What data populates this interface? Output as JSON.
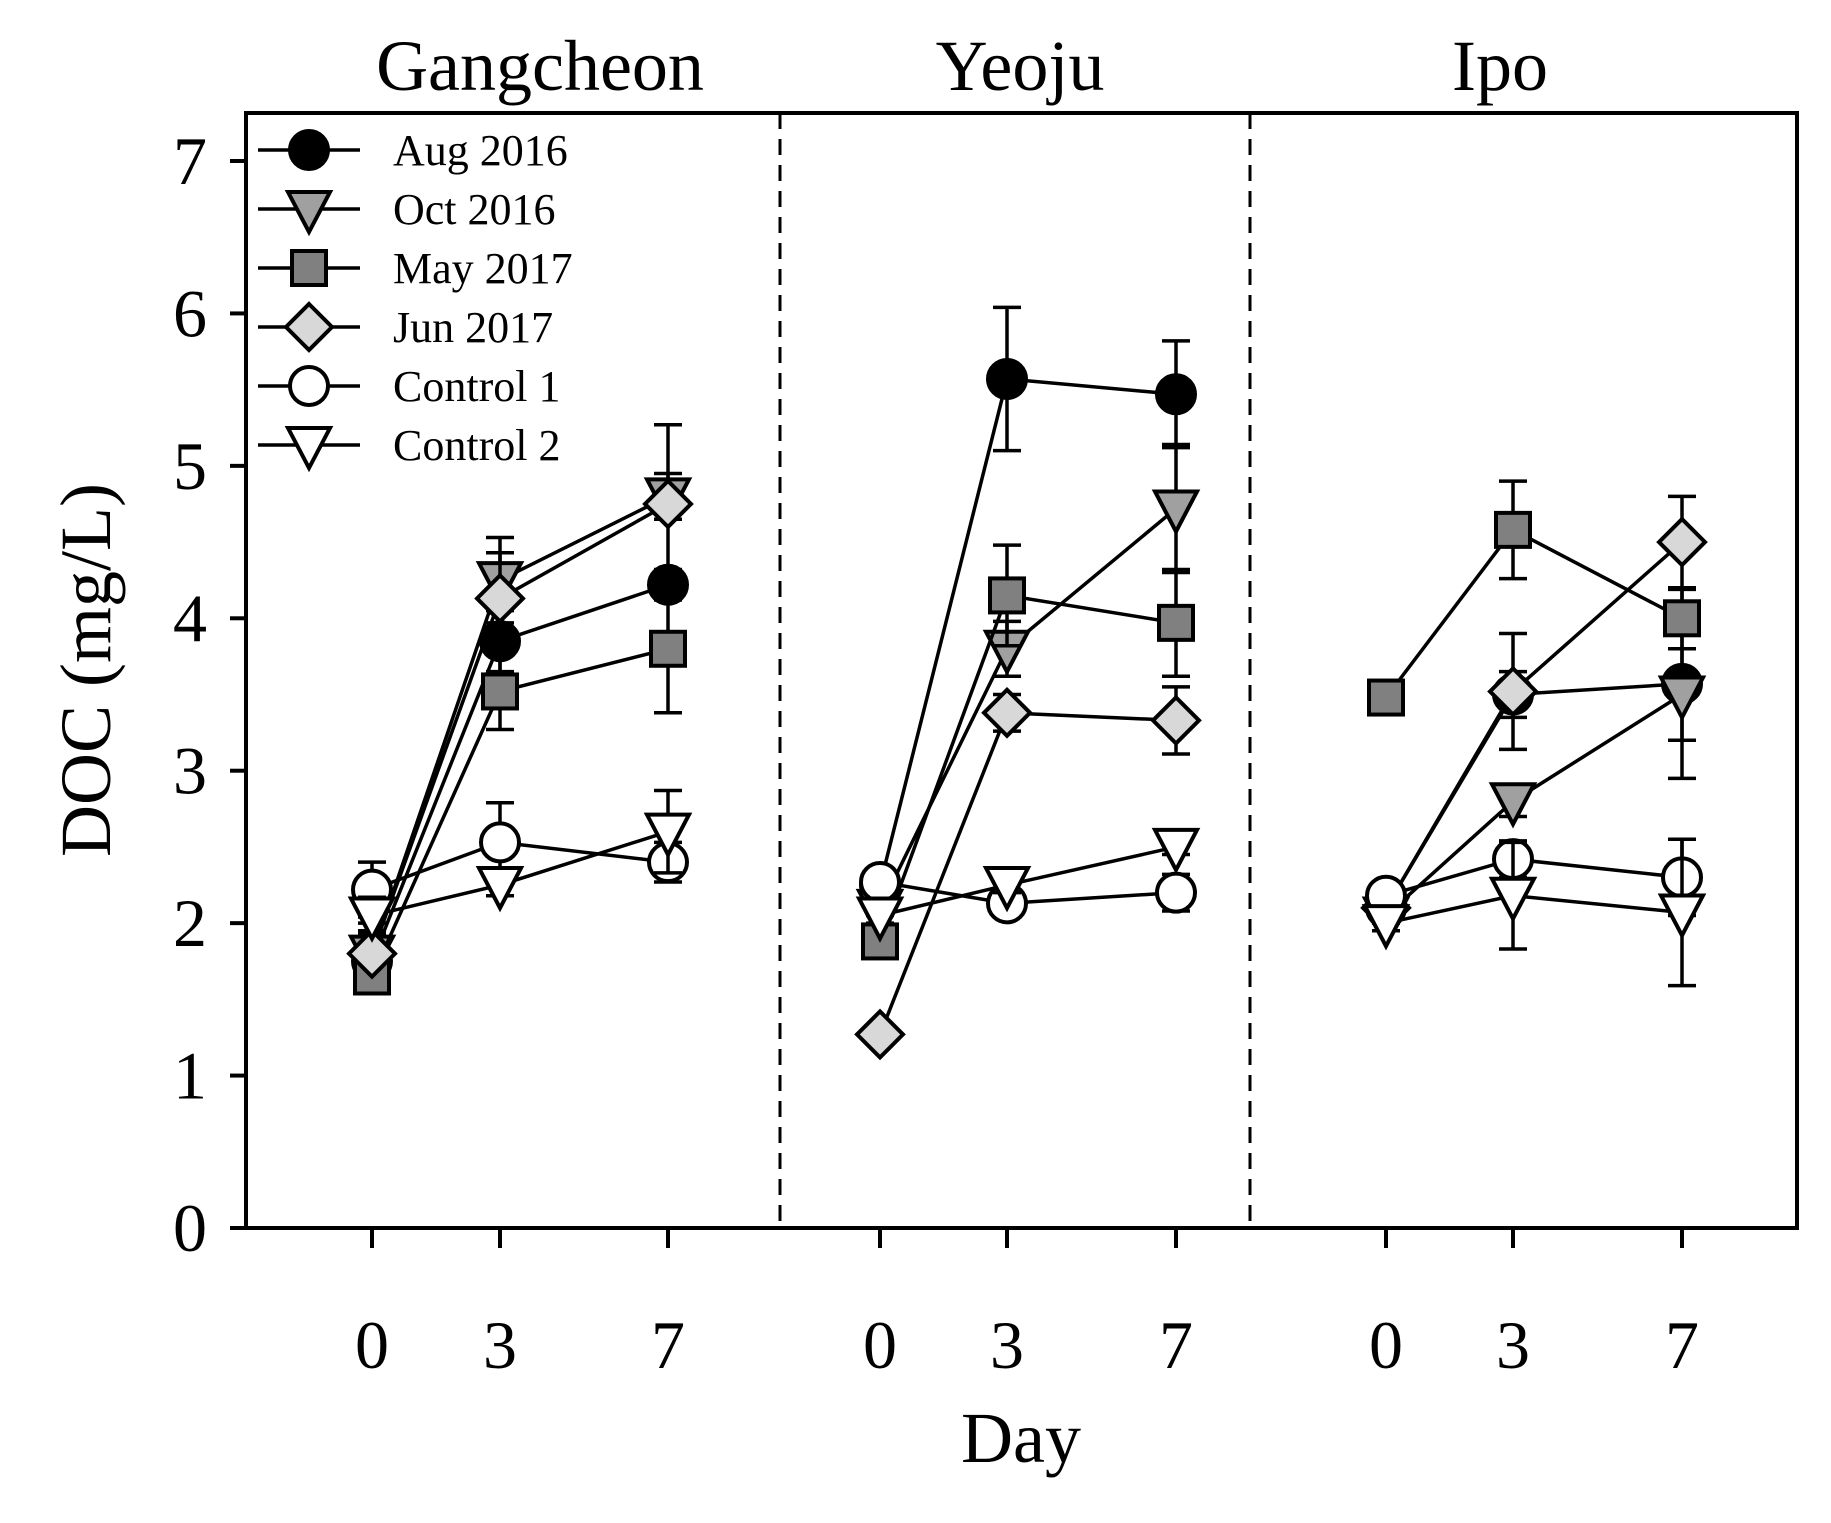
{
  "chart_data": {
    "type": "line",
    "ylabel": "DOC (mg/L)",
    "xlabel": "Day",
    "ylim": [
      0,
      7
    ],
    "yticks": [
      "0",
      "1",
      "2",
      "3",
      "4",
      "5",
      "6",
      "7"
    ],
    "grid": false,
    "legend_position": "top-left",
    "panels": [
      {
        "title": "Gangcheon",
        "x": [
          "0",
          "3",
          "7"
        ],
        "series": [
          {
            "name": "Aug 2016",
            "marker": "circle",
            "fill": "#000000",
            "values": [
              1.75,
              3.85,
              4.22
            ],
            "errors": [
              0.2,
              0.2,
              0.1
            ]
          },
          {
            "name": "Oct 2016",
            "marker": "tri-down",
            "fill": "#a0a0a0",
            "values": [
              1.8,
              4.25,
              4.8
            ],
            "errors": [
              0.2,
              0.28,
              0.15
            ]
          },
          {
            "name": "May 2017",
            "marker": "square",
            "fill": "#808080",
            "values": [
              1.65,
              3.52,
              3.8
            ],
            "errors": [
              0.05,
              0.25,
              0.42
            ]
          },
          {
            "name": "Jun 2017",
            "marker": "diamond",
            "fill": "#d8d8d8",
            "values": [
              1.8,
              4.13,
              4.75
            ],
            "errors": [
              0.05,
              0.3,
              0.52
            ]
          },
          {
            "name": "Control 1",
            "marker": "circle",
            "fill": "#ffffff",
            "values": [
              2.22,
              2.53,
              2.4
            ],
            "errors": [
              0.18,
              0.26,
              0.13
            ]
          },
          {
            "name": "Control 2",
            "marker": "tri-down",
            "fill": "#ffffff",
            "values": [
              2.05,
              2.25,
              2.6
            ],
            "errors": [
              0.12,
              0.07,
              0.27
            ]
          }
        ]
      },
      {
        "title": "Yeoju",
        "x": [
          "0",
          "3",
          "7"
        ],
        "series": [
          {
            "name": "Aug 2016",
            "marker": "circle",
            "fill": "#000000",
            "values": [
              2.25,
              5.57,
              5.47
            ],
            "errors": [
              0.05,
              0.47,
              0.35
            ]
          },
          {
            "name": "Oct 2016",
            "marker": "tri-down",
            "fill": "#a0a0a0",
            "values": [
              2.1,
              3.8,
              4.72
            ],
            "errors": [
              0.05,
              0.18,
              0.42
            ]
          },
          {
            "name": "May 2017",
            "marker": "square",
            "fill": "#808080",
            "values": [
              1.88,
              4.15,
              3.97
            ],
            "errors": [
              0.05,
              0.33,
              0.35
            ]
          },
          {
            "name": "Jun 2017",
            "marker": "diamond",
            "fill": "#d8d8d8",
            "values": [
              1.27,
              3.38,
              3.33
            ],
            "errors": [
              0.05,
              0.12,
              0.22
            ]
          },
          {
            "name": "Control 1",
            "marker": "circle",
            "fill": "#ffffff",
            "values": [
              2.27,
              2.13,
              2.2
            ],
            "errors": [
              0.04,
              0.05,
              0.12
            ]
          },
          {
            "name": "Control 2",
            "marker": "tri-down",
            "fill": "#ffffff",
            "values": [
              2.05,
              2.25,
              2.5
            ],
            "errors": [
              0.05,
              0.05,
              0.05
            ]
          }
        ]
      },
      {
        "title": "Ipo",
        "x": [
          "0",
          "3",
          "7"
        ],
        "series": [
          {
            "name": "Aug 2016",
            "marker": "circle",
            "fill": "#000000",
            "values": [
              2.1,
              3.5,
              3.57
            ],
            "errors": [
              0.05,
              0.15,
              0.62
            ]
          },
          {
            "name": "Oct 2016",
            "marker": "tri-down",
            "fill": "#a0a0a0",
            "values": [
              2.05,
              2.8,
              3.5
            ],
            "errors": [
              0.05,
              0.1,
              0.3
            ]
          },
          {
            "name": "May 2017",
            "marker": "square",
            "fill": "#808080",
            "values": [
              3.48,
              4.58,
              4.0
            ],
            "errors": [
              0.05,
              0.32,
              0.2
            ]
          },
          {
            "name": "Jun 2017",
            "marker": "diamond",
            "fill": "#d8d8d8",
            "values": [
              2.1,
              3.52,
              4.5
            ],
            "errors": [
              0.05,
              0.38,
              0.3
            ]
          },
          {
            "name": "Control 1",
            "marker": "circle",
            "fill": "#ffffff",
            "values": [
              2.18,
              2.42,
              2.3
            ],
            "errors": [
              0.05,
              0.12,
              0.25
            ]
          },
          {
            "name": "Control 2",
            "marker": "tri-down",
            "fill": "#ffffff",
            "values": [
              2.0,
              2.18,
              2.07
            ],
            "errors": [
              0.05,
              0.35,
              0.48
            ]
          }
        ]
      }
    ]
  }
}
